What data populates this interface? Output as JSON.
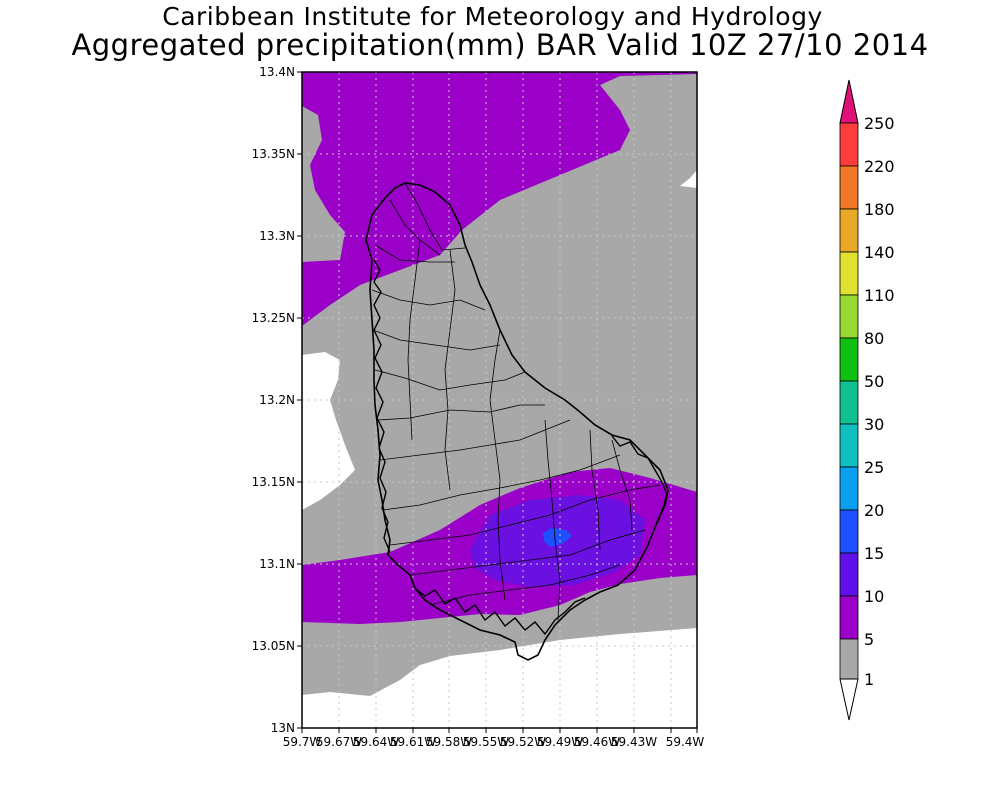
{
  "title": {
    "line1": "Caribbean Institute for Meteorology and Hydrology",
    "line2": "Aggregated precipitation(mm) BAR Valid 10Z 27/10 2014"
  },
  "axes": {
    "lat_labels": [
      "13.4N",
      "13.35N",
      "13.3N",
      "13.25N",
      "13.2N",
      "13.15N",
      "13.1N",
      "13.05N",
      "13N"
    ],
    "lon_labels": [
      "59.7W",
      "59.67W",
      "59.64W",
      "59.61W",
      "59.58W",
      "59.55W",
      "59.52W",
      "59.49W",
      "59.46W",
      "59.43W",
      "59.4W"
    ]
  },
  "colorbar": {
    "levels": [
      "250",
      "220",
      "180",
      "140",
      "110",
      "80",
      "50",
      "30",
      "25",
      "20",
      "15",
      "10",
      "5",
      "1"
    ],
    "colors": {
      "above_250": "#e0127a",
      "220_250": "#ff3c3c",
      "180_220": "#f07828",
      "140_180": "#e8a828",
      "110_140": "#e0e030",
      "80_110": "#98d830",
      "50_80": "#10c010",
      "30_50": "#10c090",
      "25_30": "#10c0c0",
      "20_25": "#0aa0f0",
      "15_20": "#1e50ff",
      "10_15": "#6010e8",
      "5_10": "#9a00c8",
      "1_5": "#a8a8a8",
      "below_1": "#ffffff"
    }
  },
  "chart_data": {
    "type": "heatmap",
    "title": "Aggregated precipitation(mm) BAR Valid 10Z 27/10 2014",
    "xlim": [
      -59.7,
      -59.4
    ],
    "ylim": [
      13.0,
      13.4
    ],
    "levels_mm": [
      1,
      5,
      10,
      15,
      20,
      25,
      30,
      50,
      80,
      110,
      140,
      180,
      220,
      250
    ],
    "max_region": "south-central Barbados, 15-20 mm"
  }
}
